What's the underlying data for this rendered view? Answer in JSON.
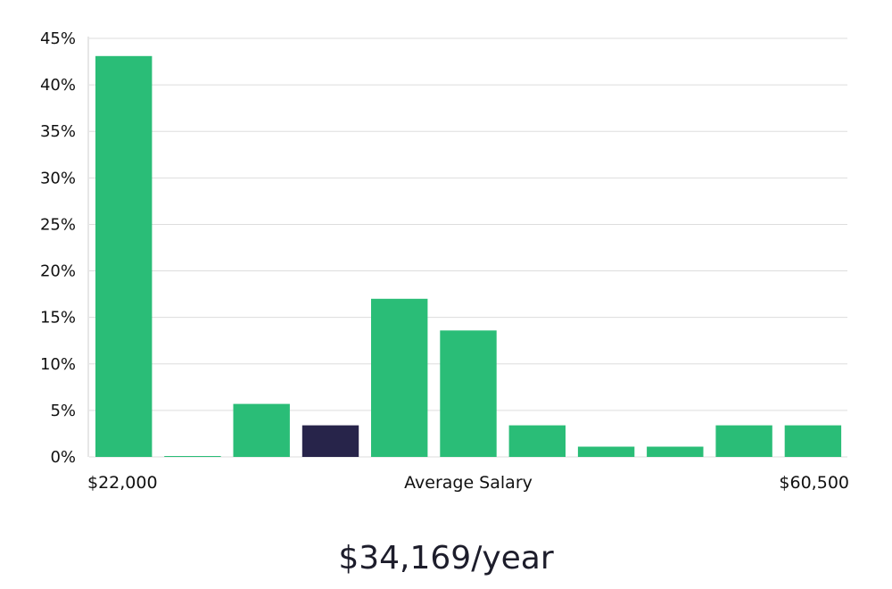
{
  "chart_data": {
    "type": "bar",
    "title": "",
    "x_left_label": "$22,000",
    "x_center_label": "Average Salary",
    "x_right_label": "$60,500",
    "xlabel": "",
    "ylabel": "",
    "y_ticks": [
      "0%",
      "5%",
      "10%",
      "15%",
      "20%",
      "25%",
      "30%",
      "35%",
      "40%",
      "45%"
    ],
    "y_tick_values": [
      0,
      5,
      10,
      15,
      20,
      25,
      30,
      35,
      40,
      45
    ],
    "ylim": [
      0,
      45
    ],
    "grid": true,
    "values": [
      43.1,
      0.1,
      5.7,
      3.4,
      17.0,
      13.6,
      3.4,
      1.1,
      1.1,
      3.4,
      3.4
    ],
    "highlight_index": 3,
    "colors": {
      "bar": "#2abd77",
      "highlight": "#27244a",
      "grid": "#dddddd",
      "axis": "#cccccc",
      "text": "#111111"
    }
  },
  "summary": {
    "average_salary": "$34,169/year"
  }
}
